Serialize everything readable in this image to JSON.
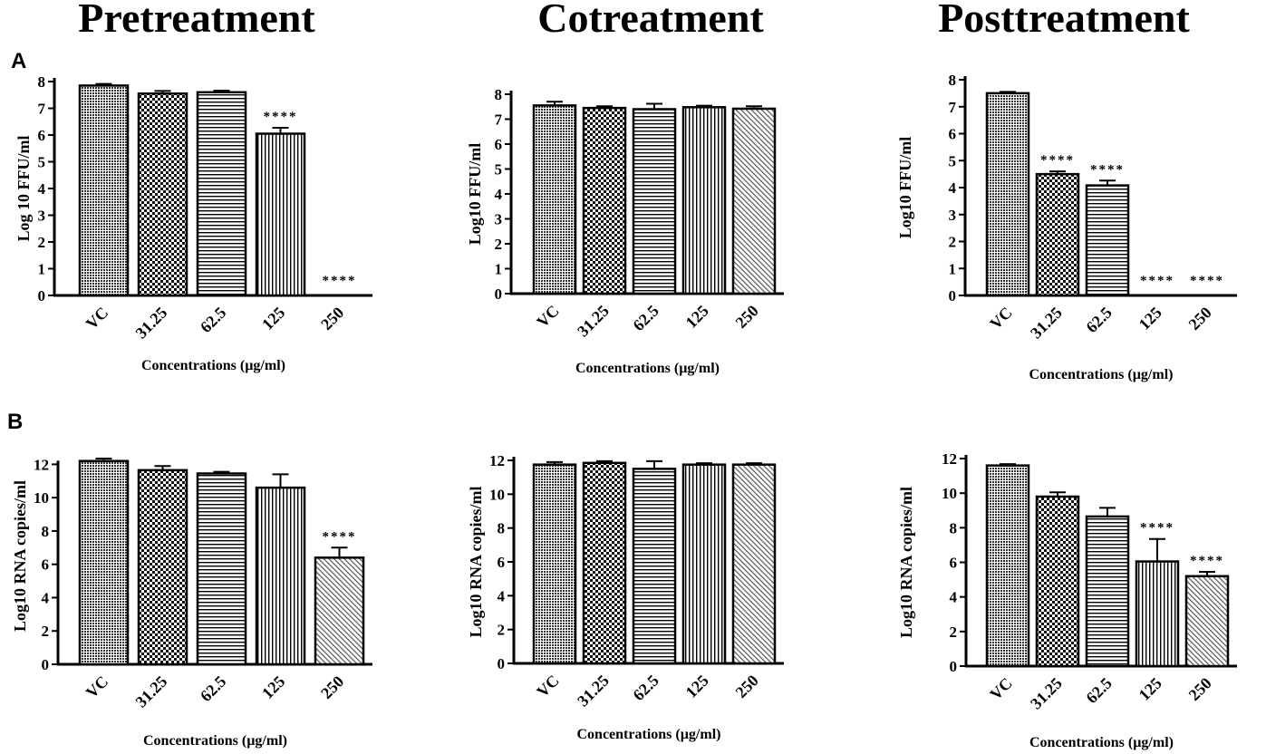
{
  "titles": {
    "pre": "Pretreatment",
    "co": "Cotreatment",
    "post": "Posttreatment"
  },
  "panel_labels": {
    "a": "A",
    "b": "B"
  },
  "chart_data": [
    {
      "id": "A-pre",
      "type": "bar",
      "row": "A",
      "column": "Pretreatment",
      "categories": [
        "VC",
        "31.25",
        "62.5",
        "125",
        "250"
      ],
      "values": [
        7.85,
        7.55,
        7.6,
        6.05,
        0
      ],
      "errors": [
        0.06,
        0.1,
        0.06,
        0.22,
        0
      ],
      "significance": [
        "",
        "",
        "",
        "****",
        "****"
      ],
      "ylabel": "Log 10 FFU/ml",
      "xlabel": "Concentrations (µg/ml)",
      "ylim": [
        0,
        8
      ],
      "yticks": [
        0,
        1,
        2,
        3,
        4,
        5,
        6,
        7,
        8
      ]
    },
    {
      "id": "A-co",
      "type": "bar",
      "row": "A",
      "column": "Cotreatment",
      "categories": [
        "VC",
        "31.25",
        "62.5",
        "125",
        "250"
      ],
      "values": [
        7.55,
        7.45,
        7.4,
        7.48,
        7.42
      ],
      "errors": [
        0.15,
        0.07,
        0.22,
        0.06,
        0.1
      ],
      "significance": [
        "",
        "",
        "",
        "",
        ""
      ],
      "ylabel": "Log10 FFU/ml",
      "xlabel": "Concentrations (µg/ml)",
      "ylim": [
        0,
        8
      ],
      "yticks": [
        0,
        1,
        2,
        3,
        4,
        5,
        6,
        7,
        8
      ]
    },
    {
      "id": "A-post",
      "type": "bar",
      "row": "A",
      "column": "Posttreatment",
      "categories": [
        "VC",
        "31.25",
        "62.5",
        "125",
        "250"
      ],
      "values": [
        7.5,
        4.5,
        4.08,
        0,
        0
      ],
      "errors": [
        0.05,
        0.1,
        0.18,
        0,
        0
      ],
      "significance": [
        "",
        "****",
        "****",
        "****",
        "****"
      ],
      "ylabel": "Log10 FFU/ml",
      "xlabel": "Concentrations (µg/ml)",
      "ylim": [
        0,
        8
      ],
      "yticks": [
        0,
        1,
        2,
        3,
        4,
        5,
        6,
        7,
        8
      ]
    },
    {
      "id": "B-pre",
      "type": "bar",
      "row": "B",
      "column": "Pretreatment",
      "categories": [
        "VC",
        "31.25",
        "62.5",
        "125",
        "250"
      ],
      "values": [
        12.2,
        11.65,
        11.45,
        10.6,
        6.4
      ],
      "errors": [
        0.15,
        0.25,
        0.1,
        0.8,
        0.6
      ],
      "significance": [
        "",
        "",
        "",
        "",
        "****"
      ],
      "ylabel": "Log10 RNA copies/ml",
      "xlabel": "Concentrations (µg/ml)",
      "ylim": [
        0,
        13
      ],
      "yticks": [
        0,
        2,
        4,
        6,
        8,
        10,
        12
      ]
    },
    {
      "id": "B-co",
      "type": "bar",
      "row": "B",
      "column": "Cotreatment",
      "categories": [
        "VC",
        "31.25",
        "62.5",
        "125",
        "250"
      ],
      "values": [
        11.75,
        11.85,
        11.5,
        11.75,
        11.75
      ],
      "errors": [
        0.15,
        0.1,
        0.45,
        0.08,
        0.08
      ],
      "significance": [
        "",
        "",
        "",
        "",
        ""
      ],
      "ylabel": "Log10 RNA copies/ml",
      "xlabel": "Concentrations (µg/ml)",
      "ylim": [
        0,
        12
      ],
      "yticks": [
        0,
        2,
        4,
        6,
        8,
        10,
        12
      ]
    },
    {
      "id": "B-post",
      "type": "bar",
      "row": "B",
      "column": "Posttreatment",
      "categories": [
        "VC",
        "31.25",
        "62.5",
        "125",
        "250"
      ],
      "values": [
        11.6,
        9.8,
        8.65,
        6.05,
        5.2
      ],
      "errors": [
        0.08,
        0.25,
        0.5,
        1.3,
        0.25
      ],
      "significance": [
        "",
        "",
        "",
        "****",
        "****"
      ],
      "ylabel": "Log10 RNA copies/ml",
      "xlabel": "Concentrations (µg/ml)",
      "ylim": [
        0,
        12
      ],
      "yticks": [
        0,
        2,
        4,
        6,
        8,
        10,
        12
      ]
    }
  ]
}
